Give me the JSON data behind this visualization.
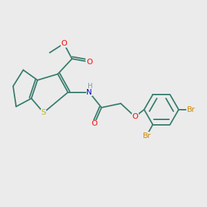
{
  "bg_color": "#ebebeb",
  "bond_color": "#3a7d6e",
  "s_color": "#b8b800",
  "n_color": "#0000cc",
  "o_color": "#ff0000",
  "br_color": "#cc8800",
  "h_color": "#7a9a9a",
  "font_size": 8,
  "lw": 1.4,
  "xlim": [
    0,
    10
  ],
  "ylim": [
    0,
    10
  ]
}
